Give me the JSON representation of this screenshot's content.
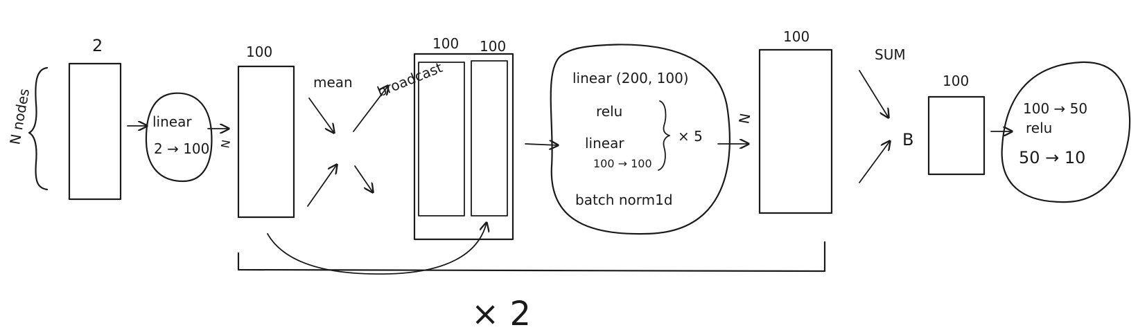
{
  "labels": {
    "n_nodes": "N nodes",
    "input_dim": "2",
    "linear_in_1": "linear",
    "linear_in_2": "2 → 100",
    "n_after_linear": "N",
    "hidden_dim_1": "100",
    "mean": "mean",
    "broadcast": "broadcast",
    "concat_dim_a": "100",
    "concat_dim_b": "100",
    "mlp_line1": "linear (200, 100)",
    "mlp_relu": "relu",
    "mlp_linear": "linear",
    "mlp_linear_dims": "100 → 100",
    "mlp_repeat": "× 5",
    "mlp_batchnorm": "batch norm1d",
    "n_after_mlp": "N",
    "hidden_dim_2": "100",
    "sum": "SUM",
    "b_label": "B",
    "pooled_dim": "100",
    "head_line1": "100 → 50",
    "head_relu": "relu",
    "head_line2": "50 → 10",
    "repeat_block": "× 2"
  }
}
